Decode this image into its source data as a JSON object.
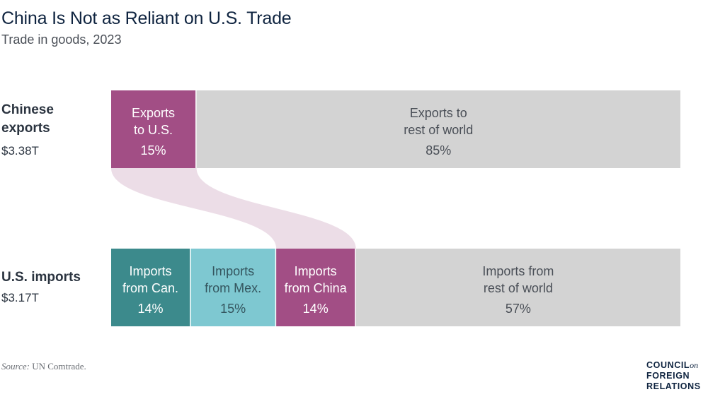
{
  "chart_data": {
    "type": "bar",
    "title": "China Is Not as Reliant on U.S. Trade",
    "subtitle": "Trade in goods, 2023",
    "rows": [
      {
        "label": "Chinese exports",
        "total": "$3.38T",
        "segments": [
          {
            "label": [
              "Exports",
              "to U.S."
            ],
            "value": 15,
            "display": "15%",
            "color": "#a24e85",
            "text_color": "#ffffff"
          },
          {
            "label": [
              "Exports to",
              "rest of world"
            ],
            "value": 85,
            "display": "85%",
            "color": "#d3d3d3",
            "text_color": "#4a4f57"
          }
        ]
      },
      {
        "label": "U.S. imports",
        "total": "$3.17T",
        "segments": [
          {
            "label": [
              "Imports",
              "from Can."
            ],
            "value": 14,
            "display": "14%",
            "color": "#3c8a8c",
            "text_color": "#ffffff"
          },
          {
            "label": [
              "Imports",
              "from Mex."
            ],
            "value": 15,
            "display": "15%",
            "color": "#7ec8d1",
            "text_color": "#34555e"
          },
          {
            "label": [
              "Imports",
              "from China"
            ],
            "value": 14,
            "display": "14%",
            "color": "#a24e85",
            "text_color": "#ffffff"
          },
          {
            "label": [
              "Imports from",
              "rest of world"
            ],
            "value": 57,
            "display": "57%",
            "color": "#d3d3d3",
            "text_color": "#4a4f57"
          }
        ]
      }
    ],
    "flow": {
      "from_row": 0,
      "from_segment": 0,
      "to_row": 1,
      "to_segment": 2,
      "color": "#ecdde7"
    }
  },
  "row_labels": {
    "chinese_exports": "Chinese\nexports",
    "chinese_total": "$3.38T",
    "us_imports": "U.S. imports",
    "us_total": "$3.17T"
  },
  "source": {
    "label": "Source:",
    "text": " UN Comtrade."
  },
  "logo": {
    "line1": "COUNCIL",
    "on": "on",
    "line2": "FOREIGN",
    "line3": "RELATIONS"
  }
}
